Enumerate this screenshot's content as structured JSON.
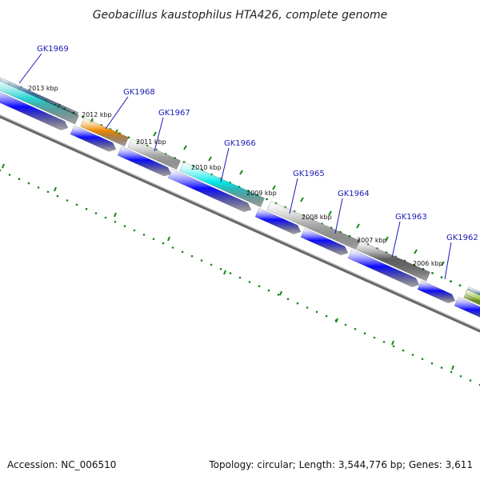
{
  "title": "Geobacillus kaustophilus HTA426, complete genome",
  "footer": {
    "accession": "Accession: NC_006510",
    "topology": "Topology: circular; Length: 3,544,776 bp; Genes: 3,611"
  },
  "colors": {
    "backbone": "#7a7a7a",
    "tick": "#138a13",
    "cds": "#0a0aff",
    "leader": "#1a1ab4"
  },
  "scale_labels": [
    {
      "text": "2013 kbp"
    },
    {
      "text": "2012 kbp"
    },
    {
      "text": "2011 kbp"
    },
    {
      "text": "2010 kbp"
    },
    {
      "text": "2009 kbp"
    },
    {
      "text": "2008 kbp"
    },
    {
      "text": "2007 kbp"
    },
    {
      "text": "2006 kbp"
    }
  ],
  "genes": [
    {
      "name": "GK1969",
      "color": "#2ad4d4"
    },
    {
      "name": "GK1968",
      "color": "#f08a00"
    },
    {
      "name": "GK1967",
      "color": "#bdbdbd"
    },
    {
      "name": "GK1966",
      "color": "#00e8e8"
    },
    {
      "name": "GK1965",
      "color": "#b4b4b4"
    },
    {
      "name": "GK1964",
      "color": "#b8b8b8"
    },
    {
      "name": "GK1963",
      "color": "#5e5e5e"
    },
    {
      "name": "GK1962",
      "color": "#6b8e23"
    }
  ]
}
